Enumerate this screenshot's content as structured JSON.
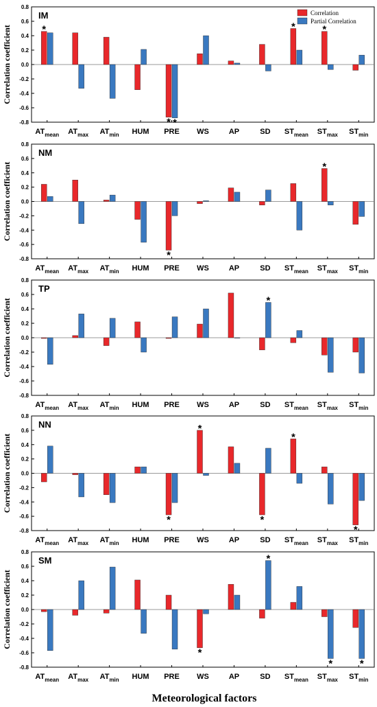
{
  "xlabel": "Meteorological factors",
  "ylabel": "Correlation coefficient",
  "legend": {
    "correlation": "Correlation",
    "partial": "Partial Correlation",
    "placement": "top-right (first panel)"
  },
  "colors": {
    "correlation": "#e8282b",
    "partial": "#3a79c0",
    "axis": "#000000",
    "zero_line": "#777777"
  },
  "categories": [
    {
      "main": "AT",
      "sub": "mean"
    },
    {
      "main": "AT",
      "sub": "max"
    },
    {
      "main": "AT",
      "sub": "min"
    },
    {
      "main": "HUM",
      "sub": ""
    },
    {
      "main": "PRE",
      "sub": ""
    },
    {
      "main": "WS",
      "sub": ""
    },
    {
      "main": "AP",
      "sub": ""
    },
    {
      "main": "SD",
      "sub": ""
    },
    {
      "main": "ST",
      "sub": "mean"
    },
    {
      "main": "ST",
      "sub": "max"
    },
    {
      "main": "ST",
      "sub": "min"
    }
  ],
  "chart_data": [
    {
      "type": "bar",
      "title": "IM",
      "ylim": [
        -0.8,
        0.8
      ],
      "yticks": [
        -0.8,
        -0.6,
        -0.4,
        -0.2,
        0.0,
        0.2,
        0.4,
        0.6,
        0.8
      ],
      "series": [
        {
          "name": "Correlation",
          "values": [
            0.46,
            0.44,
            0.38,
            -0.35,
            -0.73,
            0.15,
            0.05,
            0.28,
            0.5,
            0.46,
            -0.08
          ],
          "significant": [
            true,
            false,
            false,
            false,
            true,
            false,
            false,
            false,
            true,
            true,
            false
          ]
        },
        {
          "name": "Partial Correlation",
          "values": [
            0.44,
            -0.33,
            -0.47,
            0.21,
            -0.74,
            0.4,
            0.02,
            -0.09,
            0.2,
            -0.07,
            0.13
          ],
          "significant": [
            false,
            false,
            false,
            false,
            true,
            false,
            false,
            false,
            false,
            false,
            false
          ]
        }
      ]
    },
    {
      "type": "bar",
      "title": "NM",
      "ylim": [
        -0.8,
        0.8
      ],
      "yticks": [
        -0.8,
        -0.6,
        -0.4,
        -0.2,
        0.0,
        0.2,
        0.4,
        0.6,
        0.8
      ],
      "series": [
        {
          "name": "Correlation",
          "values": [
            0.24,
            0.3,
            0.02,
            -0.25,
            -0.68,
            -0.03,
            0.19,
            -0.05,
            0.25,
            0.46,
            -0.32
          ],
          "significant": [
            false,
            false,
            false,
            false,
            true,
            false,
            false,
            false,
            false,
            true,
            false
          ]
        },
        {
          "name": "Partial Correlation",
          "values": [
            0.07,
            -0.31,
            0.09,
            -0.57,
            -0.2,
            0.01,
            0.13,
            0.16,
            -0.4,
            -0.05,
            -0.21
          ],
          "significant": [
            false,
            false,
            false,
            false,
            false,
            false,
            false,
            false,
            false,
            false,
            false
          ]
        }
      ]
    },
    {
      "type": "bar",
      "title": "TP",
      "ylim": [
        -0.8,
        0.8
      ],
      "yticks": [
        -0.8,
        -0.6,
        -0.4,
        -0.2,
        0.0,
        0.2,
        0.4,
        0.6,
        0.8
      ],
      "series": [
        {
          "name": "Correlation",
          "values": [
            -0.01,
            0.03,
            -0.11,
            0.22,
            -0.01,
            0.19,
            0.62,
            -0.17,
            -0.07,
            -0.24,
            -0.2
          ],
          "significant": [
            false,
            false,
            false,
            false,
            false,
            false,
            false,
            false,
            false,
            false,
            false
          ]
        },
        {
          "name": "Partial Correlation",
          "values": [
            -0.37,
            0.33,
            0.27,
            -0.2,
            0.29,
            0.4,
            0.0,
            0.49,
            0.1,
            -0.48,
            -0.49
          ],
          "significant": [
            false,
            false,
            false,
            false,
            false,
            false,
            false,
            true,
            false,
            false,
            false
          ]
        }
      ]
    },
    {
      "type": "bar",
      "title": "NN",
      "ylim": [
        -0.8,
        0.8
      ],
      "yticks": [
        -0.8,
        -0.6,
        -0.4,
        -0.2,
        0.0,
        0.2,
        0.4,
        0.6,
        0.8
      ],
      "series": [
        {
          "name": "Correlation",
          "values": [
            -0.12,
            -0.02,
            -0.3,
            0.09,
            -0.58,
            0.6,
            0.37,
            -0.58,
            0.48,
            0.09,
            -0.72
          ],
          "significant": [
            false,
            false,
            false,
            false,
            true,
            true,
            false,
            true,
            true,
            false,
            true
          ]
        },
        {
          "name": "Partial Correlation",
          "values": [
            0.38,
            -0.33,
            -0.41,
            0.09,
            -0.41,
            -0.03,
            0.14,
            0.35,
            -0.14,
            -0.43,
            -0.38
          ],
          "significant": [
            false,
            false,
            false,
            false,
            false,
            false,
            false,
            false,
            false,
            false,
            false
          ]
        }
      ]
    },
    {
      "type": "bar",
      "title": "SM",
      "ylim": [
        -0.8,
        0.8
      ],
      "yticks": [
        -0.8,
        -0.6,
        -0.4,
        -0.2,
        0.0,
        0.2,
        0.4,
        0.6,
        0.8
      ],
      "series": [
        {
          "name": "Correlation",
          "values": [
            -0.03,
            -0.08,
            -0.05,
            0.41,
            0.2,
            -0.53,
            0.35,
            -0.12,
            0.1,
            -0.1,
            -0.25
          ],
          "significant": [
            false,
            false,
            false,
            false,
            false,
            true,
            false,
            false,
            false,
            false,
            false
          ]
        },
        {
          "name": "Partial Correlation",
          "values": [
            -0.57,
            0.4,
            0.59,
            -0.33,
            -0.55,
            -0.06,
            0.2,
            0.68,
            0.32,
            -0.68,
            -0.68
          ],
          "significant": [
            false,
            false,
            false,
            false,
            false,
            false,
            false,
            true,
            false,
            true,
            true
          ]
        }
      ]
    }
  ]
}
